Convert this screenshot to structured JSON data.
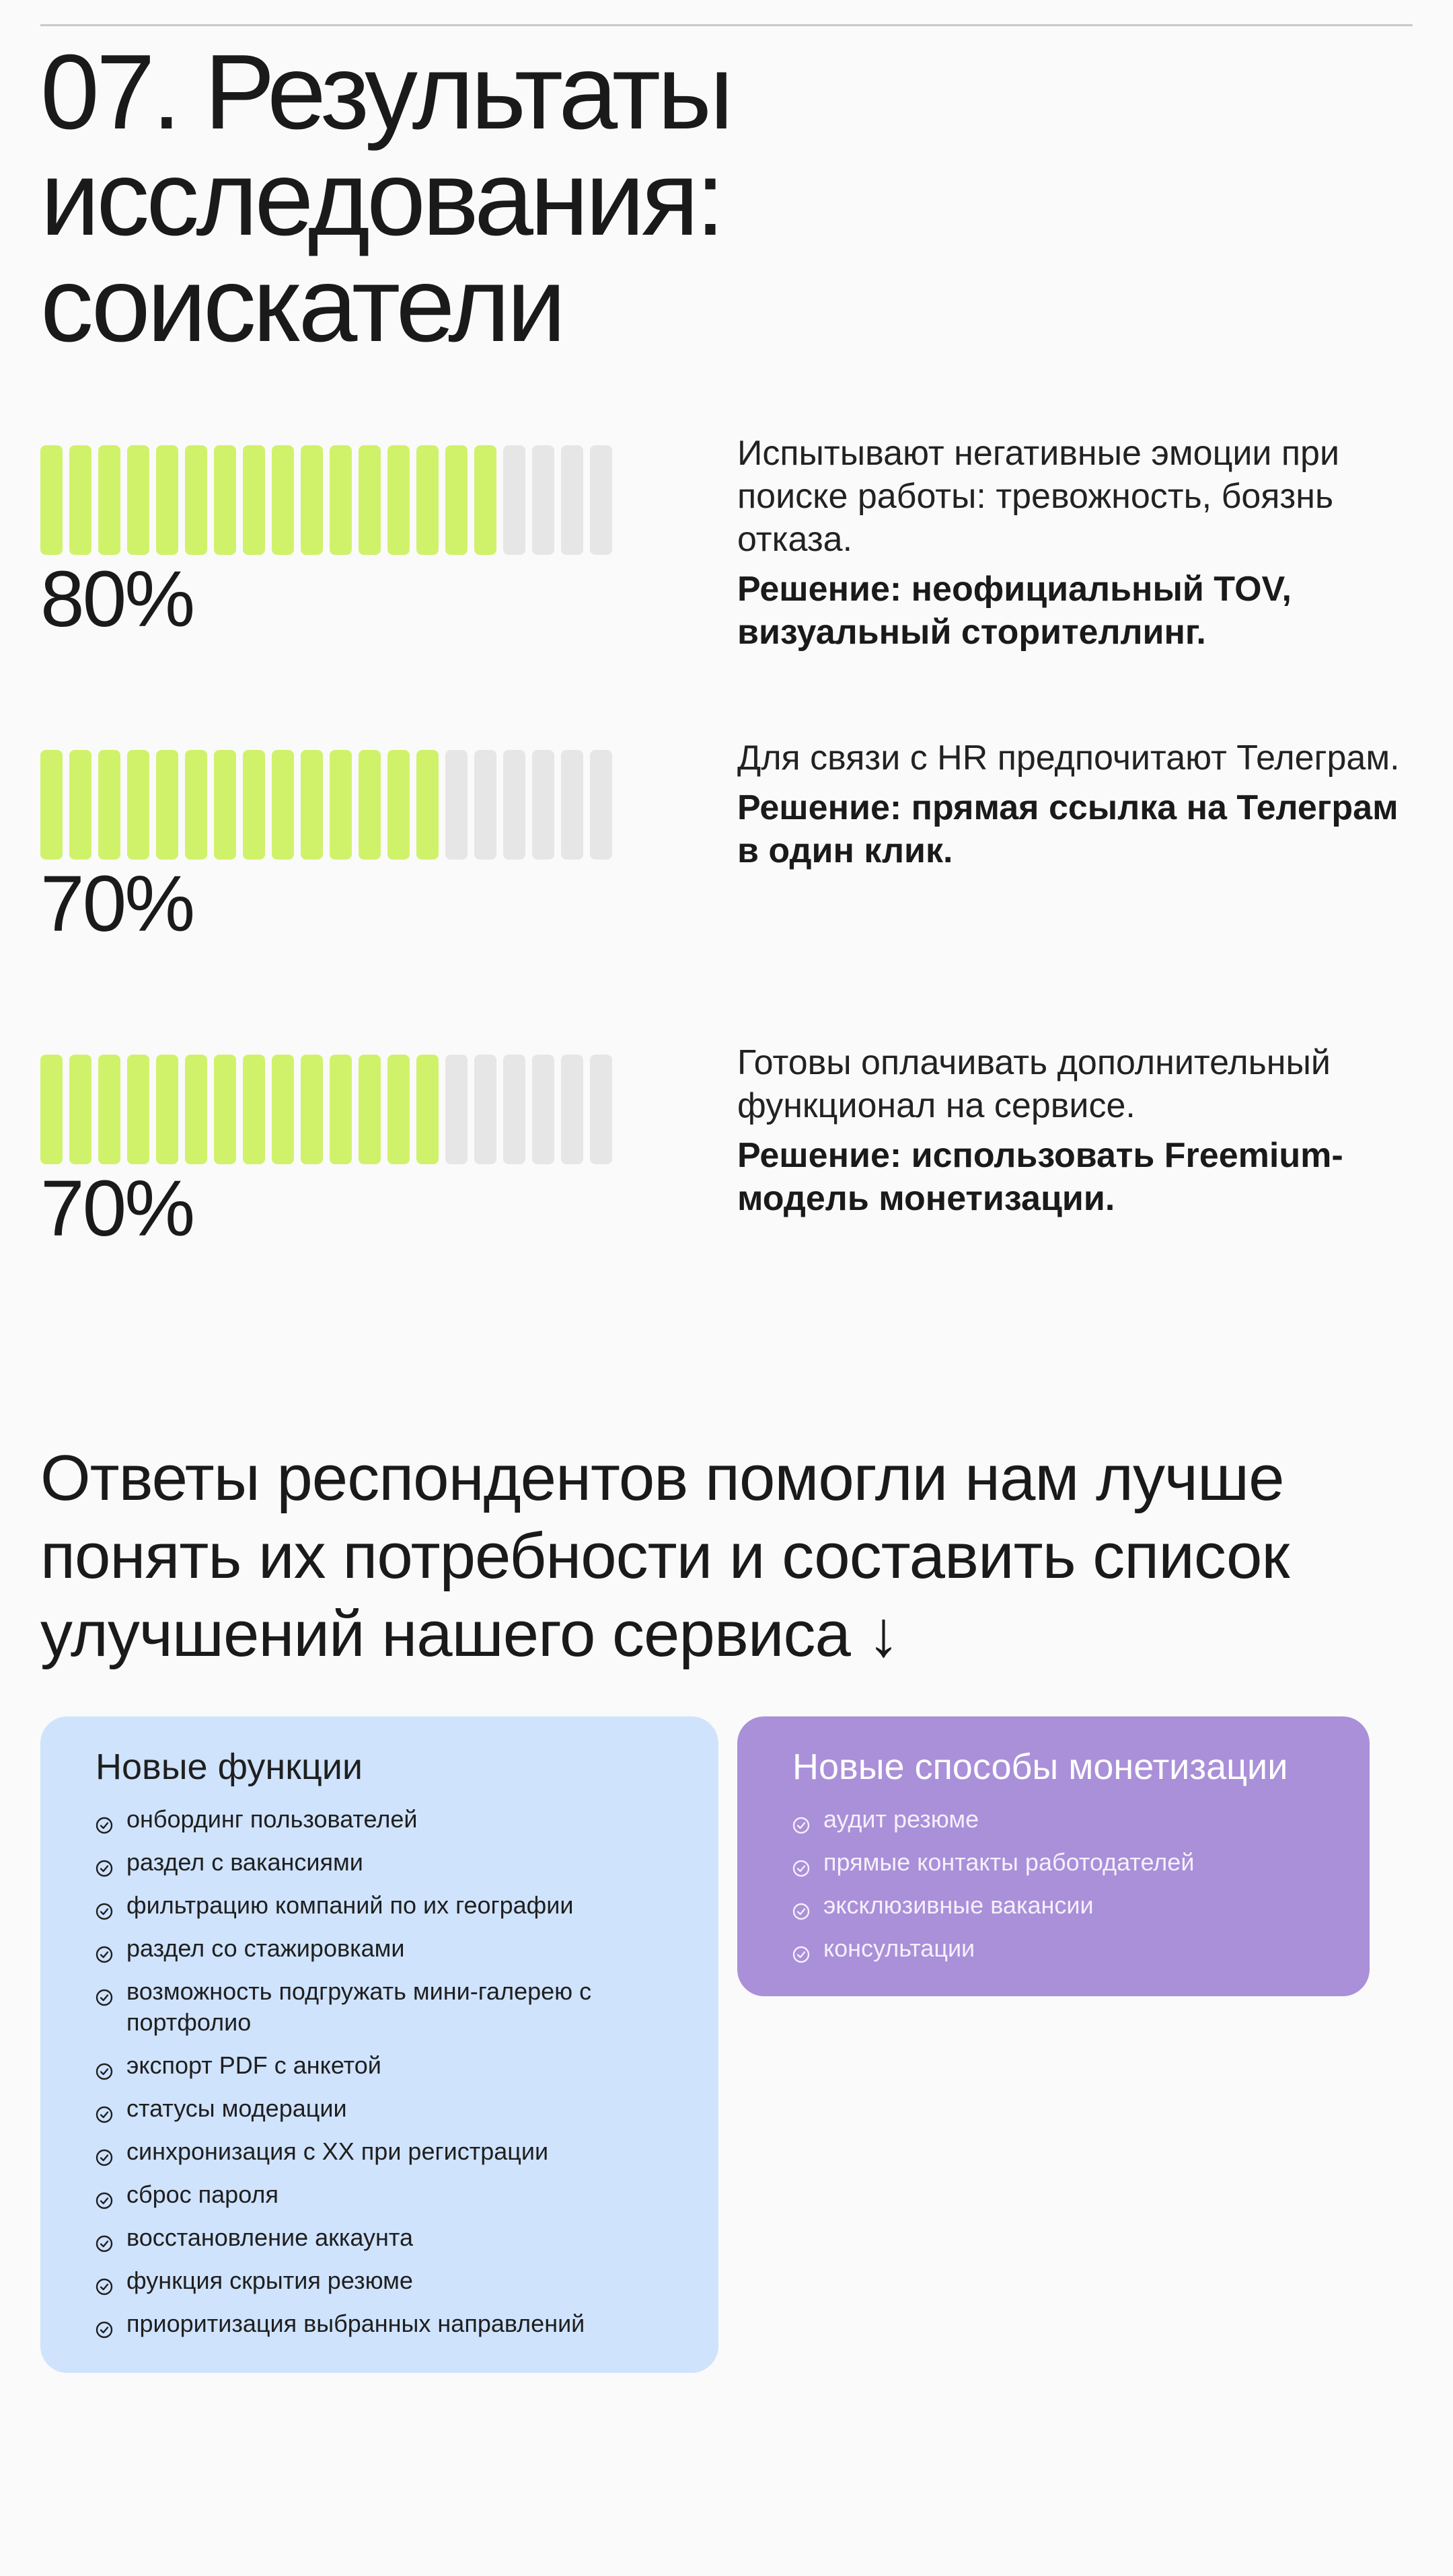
{
  "header": {
    "title_line1": "07. Результаты исследования:",
    "title_line2": "соискатели"
  },
  "colors": {
    "bar_active": "#d0f26a",
    "bar_inactive": "#e6e6e6",
    "features_card": "#cfe3fd",
    "monetization_card": "#aa8fd9"
  },
  "stats": [
    {
      "percent": "80%",
      "fraction": 0.8,
      "finding": "Испытывают негативные эмоции при поиске работы: тревожность, боязнь отказа.",
      "solution": "Решение: неофициальный TOV, визуальный сторителлинг."
    },
    {
      "percent": "70%",
      "fraction": 0.7,
      "finding": "Для связи с HR предпочитают Телеграм.",
      "solution": "Решение: прямая ссылка на Телеграм в один клик."
    },
    {
      "percent": "70%",
      "fraction": 0.7,
      "finding": "Готовы оплачивать дополнительный функционал на сервисе.",
      "solution": "Решение: использовать Freemium-модель монетизации."
    }
  ],
  "lead": "Ответы респондентов помогли нам лучше понять их потребности и составить список улучшений нашего сервиса ↓",
  "features": {
    "title": "Новые функции",
    "items": [
      "онбординг пользователей",
      "раздел с вакансиями",
      "фильтрацию компаний по их географии",
      "раздел со стажировками",
      "возможность подгружать мини-галерею с портфолио",
      "экспорт PDF с анкетой",
      "статусы модерации",
      "синхронизация с XX при регистрации",
      "сброс пароля",
      "восстановление аккаунта",
      "функция скрытия резюме",
      "приоритизация выбранных направлений"
    ]
  },
  "monetization": {
    "title": "Новые способы монетизации",
    "items": [
      "аудит резюме",
      "прямые контакты работодателей",
      "эксклюзивные вакансии",
      "консультации"
    ]
  }
}
